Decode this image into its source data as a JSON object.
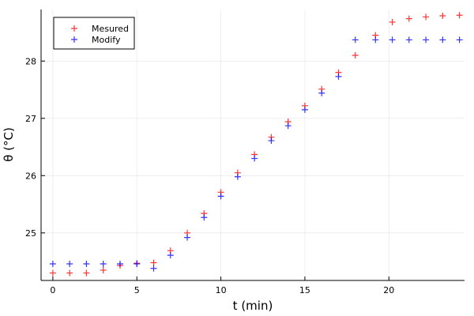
{
  "chart_data": {
    "type": "scatter",
    "title": "",
    "xlabel": "t  (min)",
    "ylabel": "θ (°C)",
    "xlim": [
      -0.7,
      24.5
    ],
    "ylim": [
      24.17,
      28.9
    ],
    "xticks": [
      0,
      5,
      10,
      15,
      20
    ],
    "yticks": [
      25,
      26,
      27,
      28
    ],
    "grid": true,
    "legend_position": "top-left",
    "marker": "cross",
    "series": [
      {
        "name": "Mesured",
        "color": "#ff0000",
        "x": [
          0,
          1,
          2,
          3,
          4,
          5,
          6,
          7,
          8,
          9,
          10,
          11,
          12,
          13,
          14,
          15,
          16,
          17,
          18,
          19.2,
          20.2,
          21.2,
          22.2,
          23.2,
          24.2
        ],
        "y": [
          24.3,
          24.3,
          24.3,
          24.35,
          24.43,
          24.47,
          24.48,
          24.69,
          25.0,
          25.34,
          25.71,
          26.05,
          26.37,
          26.67,
          26.94,
          27.22,
          27.51,
          27.8,
          28.1,
          28.45,
          28.68,
          28.74,
          28.77,
          28.79,
          28.8
        ]
      },
      {
        "name": "Modify",
        "color": "#0000ff",
        "x": [
          0,
          1,
          2,
          3,
          4,
          5,
          6,
          7,
          8,
          9,
          10,
          11,
          12,
          13,
          14,
          15,
          16,
          17,
          18,
          19.2,
          20.2,
          21.2,
          22.2,
          23.2,
          24.2
        ],
        "y": [
          24.46,
          24.46,
          24.46,
          24.46,
          24.46,
          24.46,
          24.38,
          24.61,
          24.92,
          25.27,
          25.64,
          25.98,
          26.3,
          26.61,
          26.87,
          27.15,
          27.44,
          27.73,
          28.37,
          28.37,
          28.37,
          28.37,
          28.37,
          28.37,
          28.37
        ]
      }
    ]
  }
}
